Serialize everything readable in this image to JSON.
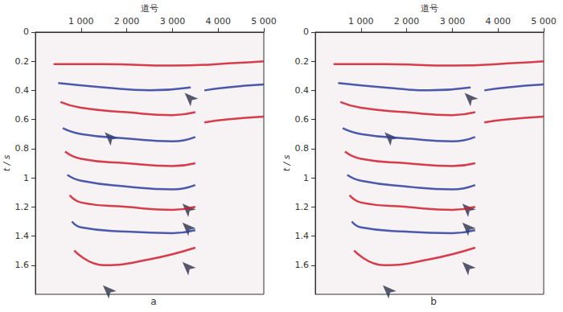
{
  "chart_data": [
    {
      "type": "line",
      "label": "a",
      "x_label": "道号",
      "y_label": "t / s",
      "xlim": [
        0,
        5000
      ],
      "xticks": [
        {
          "value": 1000,
          "label": "1 000"
        },
        {
          "value": 2000,
          "label": "2 000"
        },
        {
          "value": 3000,
          "label": "3 000"
        },
        {
          "value": 4000,
          "label": "4 000"
        },
        {
          "value": 5000,
          "label": "5 000"
        }
      ],
      "ylim": [
        0,
        1.8
      ],
      "yticks": [
        0,
        0.2,
        0.4,
        0.6,
        0.8,
        1.0,
        1.2,
        1.4,
        1.6
      ],
      "horizons": [
        {
          "color": "#d01c2a",
          "x": [
            400,
            1500,
            3000,
            4500,
            5000
          ],
          "t": [
            0.22,
            0.22,
            0.23,
            0.21,
            0.2
          ]
        },
        {
          "color": "#2c3e9e",
          "x": [
            500,
            1500,
            2500,
            3400
          ],
          "t": [
            0.35,
            0.38,
            0.4,
            0.38
          ]
        },
        {
          "color": "#d01c2a",
          "x": [
            550,
            1000,
            2000,
            3000,
            3500
          ],
          "t": [
            0.48,
            0.52,
            0.55,
            0.57,
            0.55
          ]
        },
        {
          "color": "#2c3e9e",
          "x": [
            600,
            1000,
            2000,
            3000,
            3500
          ],
          "t": [
            0.66,
            0.7,
            0.73,
            0.75,
            0.72
          ]
        },
        {
          "color": "#d01c2a",
          "x": [
            650,
            1000,
            2000,
            3000,
            3500
          ],
          "t": [
            0.82,
            0.87,
            0.9,
            0.92,
            0.9
          ]
        },
        {
          "color": "#2c3e9e",
          "x": [
            700,
            1000,
            2000,
            3000,
            3500
          ],
          "t": [
            0.98,
            1.02,
            1.06,
            1.08,
            1.05
          ]
        },
        {
          "color": "#d01c2a",
          "x": [
            750,
            1000,
            2000,
            3000,
            3500
          ],
          "t": [
            1.12,
            1.17,
            1.2,
            1.22,
            1.2
          ]
        },
        {
          "color": "#2c3e9e",
          "x": [
            800,
            1000,
            2000,
            3000,
            3500
          ],
          "t": [
            1.3,
            1.34,
            1.37,
            1.38,
            1.36
          ]
        },
        {
          "color": "#d01c2a",
          "x": [
            850,
            1500,
            2500,
            3500
          ],
          "t": [
            1.5,
            1.6,
            1.56,
            1.48
          ]
        },
        {
          "color": "#2c3e9e",
          "x": [
            3700,
            4200,
            5000
          ],
          "t": [
            0.4,
            0.38,
            0.36
          ]
        },
        {
          "color": "#d01c2a",
          "x": [
            3700,
            4200,
            5000
          ],
          "t": [
            0.62,
            0.6,
            0.58
          ]
        }
      ],
      "arrows": {
        "x": [
          3180,
          1430,
          3130,
          3130,
          3130,
          1390
        ],
        "t": [
          0.39,
          0.66,
          1.15,
          1.28,
          1.55,
          1.71
        ]
      }
    },
    {
      "type": "line",
      "label": "b",
      "x_label": "道号",
      "y_label": "t / s",
      "xlim": [
        0,
        5000
      ],
      "xticks": [
        {
          "value": 1000,
          "label": "1 000"
        },
        {
          "value": 2000,
          "label": "2 000"
        },
        {
          "value": 3000,
          "label": "3 000"
        },
        {
          "value": 4000,
          "label": "4 000"
        },
        {
          "value": 5000,
          "label": "5 000"
        }
      ],
      "ylim": [
        0,
        1.8
      ],
      "yticks": [
        0,
        0.2,
        0.4,
        0.6,
        0.8,
        1.0,
        1.2,
        1.4,
        1.6
      ],
      "horizons": [
        {
          "color": "#d01c2a",
          "x": [
            400,
            1500,
            3000,
            4500,
            5000
          ],
          "t": [
            0.22,
            0.22,
            0.23,
            0.21,
            0.2
          ]
        },
        {
          "color": "#2c3e9e",
          "x": [
            500,
            1500,
            2500,
            3400
          ],
          "t": [
            0.35,
            0.38,
            0.4,
            0.38
          ]
        },
        {
          "color": "#d01c2a",
          "x": [
            550,
            1000,
            2000,
            3000,
            3500
          ],
          "t": [
            0.48,
            0.52,
            0.55,
            0.57,
            0.55
          ]
        },
        {
          "color": "#2c3e9e",
          "x": [
            600,
            1000,
            2000,
            3000,
            3500
          ],
          "t": [
            0.66,
            0.7,
            0.73,
            0.75,
            0.72
          ]
        },
        {
          "color": "#d01c2a",
          "x": [
            650,
            1000,
            2000,
            3000,
            3500
          ],
          "t": [
            0.82,
            0.87,
            0.9,
            0.92,
            0.9
          ]
        },
        {
          "color": "#2c3e9e",
          "x": [
            700,
            1000,
            2000,
            3000,
            3500
          ],
          "t": [
            0.98,
            1.02,
            1.06,
            1.08,
            1.05
          ]
        },
        {
          "color": "#d01c2a",
          "x": [
            750,
            1000,
            2000,
            3000,
            3500
          ],
          "t": [
            1.12,
            1.17,
            1.2,
            1.22,
            1.2
          ]
        },
        {
          "color": "#2c3e9e",
          "x": [
            800,
            1000,
            2000,
            3000,
            3500
          ],
          "t": [
            1.3,
            1.34,
            1.37,
            1.38,
            1.36
          ]
        },
        {
          "color": "#d01c2a",
          "x": [
            850,
            1500,
            2500,
            3500
          ],
          "t": [
            1.5,
            1.6,
            1.56,
            1.48
          ]
        },
        {
          "color": "#2c3e9e",
          "x": [
            3700,
            4200,
            5000
          ],
          "t": [
            0.4,
            0.38,
            0.36
          ]
        },
        {
          "color": "#d01c2a",
          "x": [
            3700,
            4200,
            5000
          ],
          "t": [
            0.62,
            0.6,
            0.58
          ]
        }
      ],
      "arrows": {
        "x": [
          3180,
          1430,
          3130,
          3130,
          3130,
          1390
        ],
        "t": [
          0.39,
          0.66,
          1.15,
          1.28,
          1.55,
          1.71
        ]
      }
    }
  ]
}
